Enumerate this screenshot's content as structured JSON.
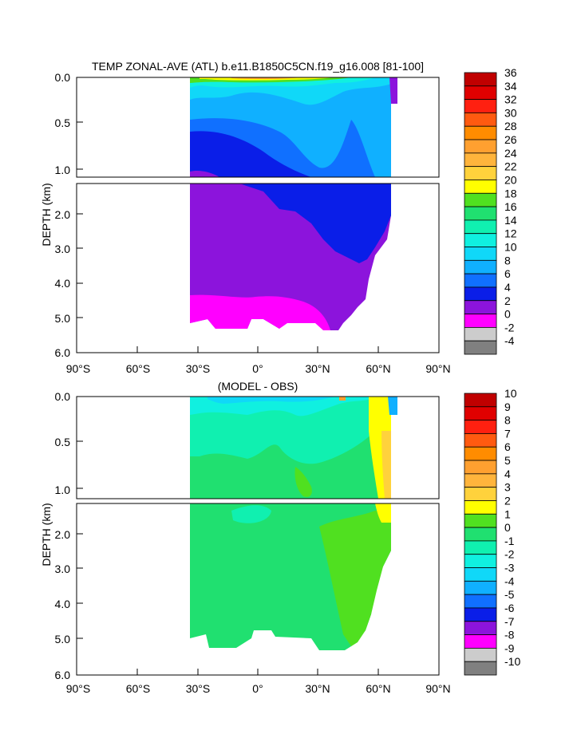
{
  "chart_data": [
    {
      "type": "heatmap",
      "title": "TEMP ZONAL-AVE (ATL) b.e11.B1850C5CN.f19_g16.008 [81-100]",
      "ylabel": "DEPTH (km)",
      "xlabel": "",
      "x_ticks": [
        "90°S",
        "60°S",
        "30°S",
        "0°",
        "30°N",
        "60°N",
        "90°N"
      ],
      "x_range": [
        -90,
        90
      ],
      "y_ticks_upper": [
        "0.0",
        "0.5",
        "1.0"
      ],
      "y_ticks_lower": [
        "2.0",
        "3.0",
        "4.0",
        "5.0",
        "6.0"
      ],
      "y_range_km": [
        0,
        6
      ],
      "data_lat_range": [
        -34,
        68
      ],
      "contour_levels": [
        -4,
        -2,
        0,
        2,
        4,
        6,
        8,
        10,
        12,
        14,
        16,
        18,
        20,
        22,
        24,
        26,
        28,
        30,
        32,
        34,
        36
      ],
      "colorbar_labels": [
        "36",
        "34",
        "32",
        "30",
        "28",
        "26",
        "24",
        "22",
        "20",
        "18",
        "16",
        "14",
        "12",
        "10",
        "8",
        "6",
        "4",
        "2",
        "0",
        "-2",
        "-4"
      ],
      "colorbar_colors": [
        "#c00000",
        "#e00000",
        "#ff2010",
        "#ff5a10",
        "#ff8c00",
        "#ffa030",
        "#ffb43c",
        "#ffd23c",
        "#ffff00",
        "#50e020",
        "#20e070",
        "#10f0b0",
        "#10f0e0",
        "#10d8f8",
        "#10b0ff",
        "#1070ff",
        "#0a1ee8",
        "#8c14dc",
        "#ff00ff",
        "#cccccc",
        "#808080"
      ],
      "depth_bands_km": [
        {
          "from": 0.0,
          "to": 0.1,
          "range_C": [
            20,
            28
          ]
        },
        {
          "from": 0.1,
          "to": 0.3,
          "range_C": [
            12,
            18
          ]
        },
        {
          "from": 0.3,
          "to": 0.8,
          "range_C": [
            8,
            12
          ]
        },
        {
          "from": 0.8,
          "to": 1.5,
          "range_C": [
            4,
            8
          ]
        },
        {
          "from": 1.5,
          "to": 3.0,
          "range_C": [
            2,
            4
          ]
        },
        {
          "from": 3.0,
          "to": 4.5,
          "range_C": [
            2,
            4
          ]
        },
        {
          "from": 4.5,
          "to": 5.4,
          "range_C": [
            0,
            2
          ]
        }
      ]
    },
    {
      "type": "heatmap",
      "title": "(MODEL - OBS)",
      "ylabel": "DEPTH (km)",
      "xlabel": "",
      "x_ticks": [
        "90°S",
        "60°S",
        "30°S",
        "0°",
        "30°N",
        "60°N",
        "90°N"
      ],
      "x_range": [
        -90,
        90
      ],
      "y_ticks_upper": [
        "0.0",
        "0.5",
        "1.0"
      ],
      "y_ticks_lower": [
        "2.0",
        "3.0",
        "4.0",
        "5.0",
        "6.0"
      ],
      "y_range_km": [
        0,
        6
      ],
      "data_lat_range": [
        -34,
        68
      ],
      "contour_levels": [
        -10,
        -9,
        -8,
        -7,
        -6,
        -5,
        -4,
        -3,
        -2,
        -1,
        0,
        1,
        2,
        3,
        4,
        5,
        6,
        7,
        8,
        9,
        10
      ],
      "colorbar_labels": [
        "10",
        "9",
        "8",
        "7",
        "6",
        "5",
        "4",
        "3",
        "2",
        "1",
        "0",
        "-1",
        "-2",
        "-3",
        "-4",
        "-5",
        "-6",
        "-7",
        "-8",
        "-9",
        "-10"
      ],
      "colorbar_colors": [
        "#c00000",
        "#e00000",
        "#ff2010",
        "#ff5a10",
        "#ff8c00",
        "#ffa030",
        "#ffb43c",
        "#ffd23c",
        "#ffff00",
        "#50e020",
        "#20e070",
        "#10f0b0",
        "#10f0e0",
        "#10d8f8",
        "#10b0ff",
        "#1070ff",
        "#0a1ee8",
        "#8c14dc",
        "#ff00ff",
        "#cccccc",
        "#808080"
      ],
      "dominant_bias_range_C": [
        0,
        1
      ],
      "upper_bias_range_C": [
        -2,
        0
      ],
      "north_atlantic_bias_range_C": [
        2,
        3
      ]
    }
  ]
}
